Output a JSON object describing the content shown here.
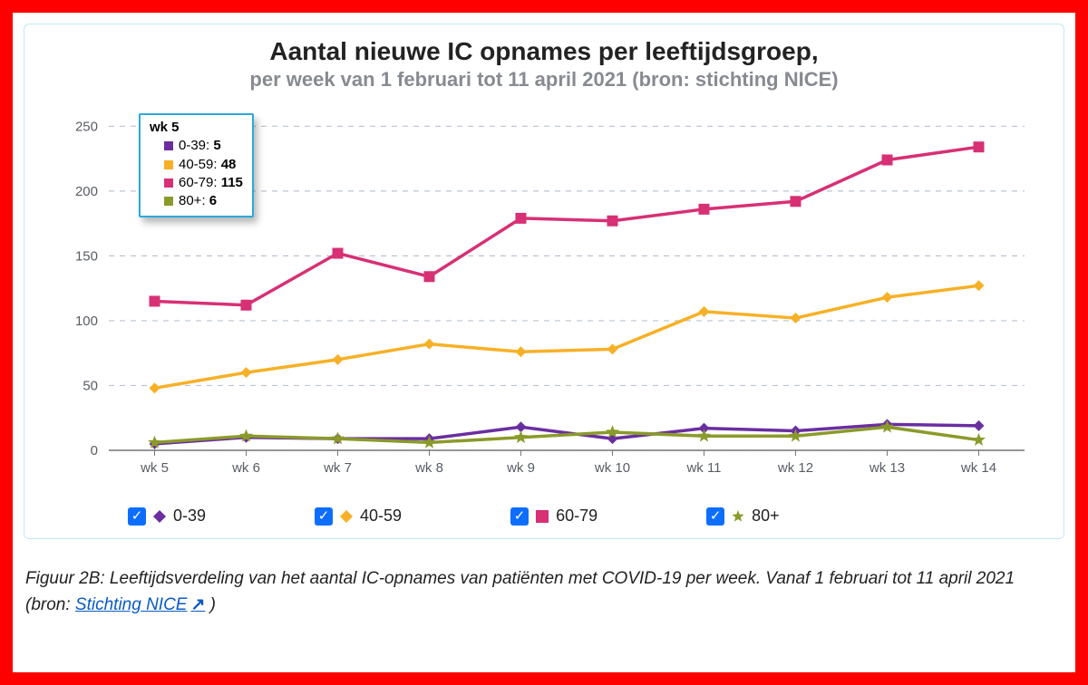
{
  "frame": {
    "outer_color": "#fe0000"
  },
  "chart": {
    "type": "line",
    "title": "Aantal nieuwe IC opnames per leeftijdsgroep,",
    "subtitle": "per week van 1 februari tot 11 april 2021 (bron: stichting NICE)",
    "background_color": "#ffffff",
    "grid_color": "#b9c4d3",
    "axis_color": "#222222",
    "xlabels": [
      "wk 5",
      "wk 6",
      "wk 7",
      "wk 8",
      "wk 9",
      "wk 10",
      "wk 11",
      "wk 12",
      "wk 13",
      "wk 14"
    ],
    "ylim": [
      0,
      260
    ],
    "yticks": [
      0,
      50,
      100,
      150,
      200,
      250
    ],
    "tick_fontsize": 15,
    "tick_color": "#585d64",
    "series": [
      {
        "name": "0-39",
        "color": "#6a2ea0",
        "marker": "diamond",
        "values": [
          5,
          10,
          9,
          9,
          18,
          9,
          17,
          15,
          20,
          19
        ]
      },
      {
        "name": "40-59",
        "color": "#f7b026",
        "marker": "diamond",
        "values": [
          48,
          60,
          70,
          82,
          76,
          78,
          107,
          102,
          118,
          127
        ]
      },
      {
        "name": "60-79",
        "color": "#d73075",
        "marker": "square",
        "values": [
          115,
          112,
          152,
          134,
          179,
          177,
          186,
          192,
          224,
          234
        ]
      },
      {
        "name": "80+",
        "color": "#8b9a2a",
        "marker": "star",
        "values": [
          6,
          11,
          9,
          6,
          10,
          14,
          11,
          11,
          18,
          8
        ]
      }
    ],
    "line_width": 3.5,
    "marker_size": 6
  },
  "tooltip": {
    "title": "wk 5",
    "rows": [
      {
        "label": "0-39",
        "value": 5,
        "color": "#6a2ea0"
      },
      {
        "label": "40-59",
        "value": 48,
        "color": "#f7b026"
      },
      {
        "label": "60-79",
        "value": 115,
        "color": "#d73075"
      },
      {
        "label": "80+",
        "value": 6,
        "color": "#8b9a2a"
      }
    ]
  },
  "legend": {
    "checkbox_color": "#0d6efd",
    "items": [
      {
        "label": "0-39",
        "color": "#6a2ea0",
        "marker": "diamond"
      },
      {
        "label": "40-59",
        "color": "#f7b026",
        "marker": "diamond"
      },
      {
        "label": "60-79",
        "color": "#d73075",
        "marker": "square"
      },
      {
        "label": "80+",
        "color": "#8b9a2a",
        "marker": "star"
      }
    ]
  },
  "caption": {
    "prefix": "Figuur 2B: Leeftijdsverdeling van het aantal IC-opnames van patiënten met COVID-19 per week. Vanaf 1 februari tot 11 april 2021 (bron: ",
    "link_text": "Stichting NICE",
    "suffix": " )"
  }
}
